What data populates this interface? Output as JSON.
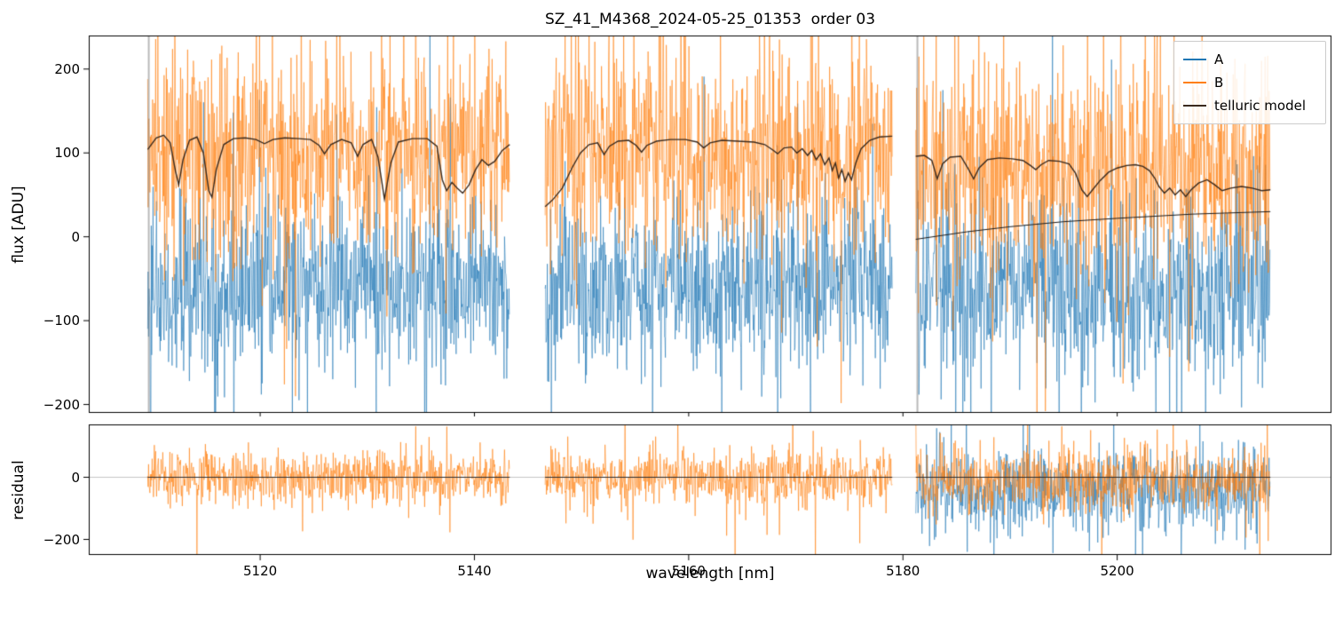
{
  "figure_title": "SZ_41_M4368_2024-05-25_01353  order 03",
  "seed": 42,
  "chart_data": [
    {
      "type": "line",
      "panel": "flux",
      "title": "SZ_41_M4368_2024-05-25_01353  order 03",
      "ylabel": "flux [ADU]",
      "xlim": [
        5104,
        5220
      ],
      "ylim": [
        -210,
        240
      ],
      "yticks": [
        -200,
        -100,
        0,
        100,
        200
      ],
      "grid": false,
      "legend": {
        "position": "upper right",
        "entries": [
          {
            "label": "A",
            "color": "#1f77b4"
          },
          {
            "label": "B",
            "color": "#ff7f0e"
          },
          {
            "label": "telluric model",
            "color": "#3a2a1e"
          }
        ]
      },
      "segments_nm": [
        [
          5109.5,
          5143.3
        ],
        [
          5146.6,
          5179.0
        ],
        [
          5181.2,
          5214.3
        ]
      ],
      "boundary_marks_nm": [
        5109.6,
        5181.35
      ],
      "noise_series": [
        {
          "name": "A",
          "color": "#1f77b4",
          "alpha": 0.85,
          "spike_prob": 0.06,
          "spike_mult": 2.3,
          "per_segment": [
            {
              "mean": -62,
              "std": 50
            },
            {
              "mean": -62,
              "std": 50
            },
            {
              "mean": -60,
              "std": 55
            }
          ]
        },
        {
          "name": "B",
          "color": "#ff7f0e",
          "alpha": 0.85,
          "spike_prob": 0.07,
          "spike_mult": 2.3,
          "per_segment": [
            {
              "mean": 100,
              "std": 60
            },
            {
              "mean": 100,
              "std": 60
            },
            {
              "mean": 85,
              "std": 65
            }
          ]
        }
      ],
      "model_series": [
        {
          "name": "telluric model",
          "color": "#3a2a1e",
          "width": 1.4,
          "points_by_segment": [
            [
              [
                5109.5,
                104
              ],
              [
                5110.3,
                118
              ],
              [
                5111.0,
                121
              ],
              [
                5111.6,
                112
              ],
              [
                5112.1,
                78
              ],
              [
                5112.4,
                62
              ],
              [
                5112.8,
                92
              ],
              [
                5113.4,
                115
              ],
              [
                5114.1,
                119
              ],
              [
                5114.7,
                100
              ],
              [
                5115.2,
                55
              ],
              [
                5115.5,
                47
              ],
              [
                5115.9,
                80
              ],
              [
                5116.6,
                110
              ],
              [
                5117.5,
                117
              ],
              [
                5118.6,
                118
              ],
              [
                5119.6,
                116
              ],
              [
                5120.4,
                111
              ],
              [
                5121.2,
                116
              ],
              [
                5122.3,
                118
              ],
              [
                5123.6,
                117
              ],
              [
                5124.7,
                116
              ],
              [
                5125.5,
                109
              ],
              [
                5126.0,
                99
              ],
              [
                5126.6,
                110
              ],
              [
                5127.6,
                116
              ],
              [
                5128.5,
                112
              ],
              [
                5129.1,
                96
              ],
              [
                5129.6,
                110
              ],
              [
                5130.4,
                116
              ],
              [
                5131.0,
                95
              ],
              [
                5131.6,
                45
              ],
              [
                5132.2,
                88
              ],
              [
                5132.9,
                113
              ],
              [
                5134.2,
                117
              ],
              [
                5135.6,
                117
              ],
              [
                5136.5,
                108
              ],
              [
                5137.0,
                68
              ],
              [
                5137.4,
                55
              ],
              [
                5137.9,
                65
              ],
              [
                5138.4,
                58
              ],
              [
                5138.9,
                52
              ],
              [
                5139.5,
                62
              ],
              [
                5140.1,
                80
              ],
              [
                5140.7,
                92
              ],
              [
                5141.3,
                85
              ],
              [
                5141.9,
                90
              ],
              [
                5142.6,
                103
              ],
              [
                5143.3,
                110
              ]
            ],
            [
              [
                5146.6,
                36
              ],
              [
                5147.3,
                44
              ],
              [
                5148.2,
                58
              ],
              [
                5149.1,
                82
              ],
              [
                5149.9,
                100
              ],
              [
                5150.7,
                110
              ],
              [
                5151.5,
                112
              ],
              [
                5152.1,
                98
              ],
              [
                5152.6,
                108
              ],
              [
                5153.4,
                114
              ],
              [
                5154.4,
                115
              ],
              [
                5155.1,
                109
              ],
              [
                5155.6,
                101
              ],
              [
                5156.1,
                109
              ],
              [
                5157.0,
                114
              ],
              [
                5158.3,
                116
              ],
              [
                5159.7,
                116
              ],
              [
                5160.8,
                113
              ],
              [
                5161.4,
                106
              ],
              [
                5162.0,
                112
              ],
              [
                5163.1,
                115
              ],
              [
                5164.6,
                114
              ],
              [
                5166.1,
                113
              ],
              [
                5167.1,
                110
              ],
              [
                5167.8,
                104
              ],
              [
                5168.3,
                99
              ],
              [
                5168.9,
                106
              ],
              [
                5169.6,
                107
              ],
              [
                5170.1,
                100
              ],
              [
                5170.6,
                105
              ],
              [
                5171.1,
                97
              ],
              [
                5171.5,
                103
              ],
              [
                5171.9,
                92
              ],
              [
                5172.3,
                99
              ],
              [
                5172.7,
                86
              ],
              [
                5173.1,
                94
              ],
              [
                5173.4,
                79
              ],
              [
                5173.7,
                88
              ],
              [
                5174.0,
                70
              ],
              [
                5174.3,
                80
              ],
              [
                5174.6,
                66
              ],
              [
                5174.9,
                76
              ],
              [
                5175.2,
                68
              ],
              [
                5175.6,
                88
              ],
              [
                5176.1,
                105
              ],
              [
                5176.9,
                115
              ],
              [
                5177.8,
                119
              ],
              [
                5179.0,
                120
              ]
            ],
            [
              [
                5181.2,
                96
              ],
              [
                5182.0,
                97
              ],
              [
                5182.7,
                91
              ],
              [
                5183.2,
                69
              ],
              [
                5183.7,
                87
              ],
              [
                5184.4,
                95
              ],
              [
                5185.4,
                96
              ],
              [
                5186.1,
                81
              ],
              [
                5186.6,
                69
              ],
              [
                5187.1,
                82
              ],
              [
                5187.9,
                92
              ],
              [
                5189.0,
                94
              ],
              [
                5190.2,
                93
              ],
              [
                5191.2,
                91
              ],
              [
                5191.9,
                85
              ],
              [
                5192.4,
                80
              ],
              [
                5192.9,
                86
              ],
              [
                5193.6,
                91
              ],
              [
                5194.6,
                90
              ],
              [
                5195.5,
                87
              ],
              [
                5196.1,
                76
              ],
              [
                5196.7,
                56
              ],
              [
                5197.2,
                48
              ],
              [
                5197.7,
                56
              ],
              [
                5198.4,
                67
              ],
              [
                5199.2,
                77
              ],
              [
                5200.0,
                82
              ],
              [
                5200.9,
                85
              ],
              [
                5201.7,
                86
              ],
              [
                5202.4,
                84
              ],
              [
                5203.0,
                79
              ],
              [
                5203.5,
                70
              ],
              [
                5203.9,
                60
              ],
              [
                5204.4,
                52
              ],
              [
                5204.9,
                58
              ],
              [
                5205.4,
                50
              ],
              [
                5205.9,
                56
              ],
              [
                5206.4,
                48
              ],
              [
                5206.9,
                56
              ],
              [
                5207.6,
                64
              ],
              [
                5208.4,
                68
              ],
              [
                5209.1,
                62
              ],
              [
                5209.8,
                55
              ],
              [
                5210.6,
                58
              ],
              [
                5211.6,
                60
              ],
              [
                5212.6,
                58
              ],
              [
                5213.5,
                55
              ],
              [
                5214.3,
                56
              ]
            ]
          ]
        },
        {
          "name": "continuum",
          "color": "#1a1a1a",
          "width": 1.0,
          "points_by_segment": [
            [],
            [],
            [
              [
                5181.2,
                -3
              ],
              [
                5186.0,
                6
              ],
              [
                5190.0,
                12
              ],
              [
                5195.0,
                18
              ],
              [
                5200.0,
                22
              ],
              [
                5207.0,
                27
              ],
              [
                5214.3,
                30
              ]
            ]
          ]
        }
      ]
    },
    {
      "type": "line",
      "panel": "residual",
      "ylabel": "residual",
      "xlabel": "wavelength [nm]",
      "xlim": [
        5104,
        5220
      ],
      "ylim": [
        -250,
        170
      ],
      "yticks": [
        -200,
        0
      ],
      "xticks": [
        5120,
        5140,
        5160,
        5180,
        5200
      ],
      "grid": false,
      "zero_line": true,
      "segments_nm": [
        [
          5109.5,
          5143.3
        ],
        [
          5146.6,
          5179.0
        ],
        [
          5181.2,
          5214.3
        ]
      ],
      "noise_series": [
        {
          "name": "A",
          "color": "#1f77b4",
          "alpha": 0.85,
          "spike_prob": 0.06,
          "spike_mult": 2.2,
          "per_segment": [
            null,
            null,
            {
              "mean": -45,
              "std": 65
            }
          ]
        },
        {
          "name": "B",
          "color": "#ff7f0e",
          "alpha": 0.85,
          "spike_prob": 0.05,
          "spike_mult": 3.0,
          "per_segment": [
            {
              "mean": 0,
              "std": 42
            },
            {
              "mean": 0,
              "std": 42
            },
            {
              "mean": -5,
              "std": 50
            }
          ]
        }
      ]
    }
  ]
}
